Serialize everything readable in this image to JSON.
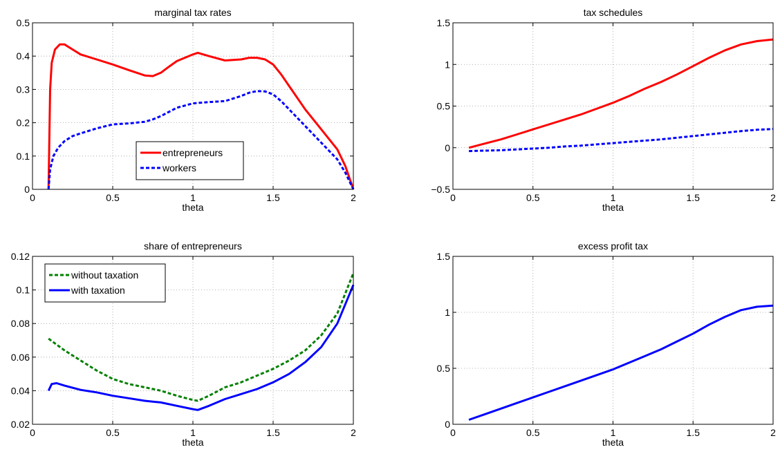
{
  "chart_data": [
    {
      "type": "line",
      "title": "marginal tax rates",
      "xlabel": "theta",
      "ylabel": "",
      "xlim": [
        0,
        2
      ],
      "ylim": [
        0,
        0.5
      ],
      "xticks": [
        "0",
        "0.5",
        "1",
        "1.5",
        "2"
      ],
      "yticks": [
        "0",
        "0.1",
        "0.2",
        "0.3",
        "0.4",
        "0.5"
      ],
      "grid": true,
      "legend": "bottom-center",
      "series": [
        {
          "name": "entrepreneurs",
          "color": "#ff0000",
          "dash": "solid",
          "x": [
            0.1,
            0.11,
            0.12,
            0.14,
            0.17,
            0.2,
            0.25,
            0.3,
            0.4,
            0.5,
            0.6,
            0.7,
            0.75,
            0.8,
            0.85,
            0.9,
            1.0,
            1.03,
            1.1,
            1.2,
            1.3,
            1.35,
            1.4,
            1.45,
            1.5,
            1.55,
            1.6,
            1.7,
            1.8,
            1.9,
            1.95,
            2.0
          ],
          "y": [
            0.0,
            0.3,
            0.38,
            0.42,
            0.435,
            0.435,
            0.42,
            0.405,
            0.39,
            0.375,
            0.358,
            0.342,
            0.34,
            0.35,
            0.368,
            0.385,
            0.405,
            0.41,
            0.4,
            0.387,
            0.39,
            0.395,
            0.395,
            0.39,
            0.375,
            0.345,
            0.31,
            0.24,
            0.18,
            0.12,
            0.07,
            0.0
          ]
        },
        {
          "name": "workers",
          "color": "#0000ff",
          "dash": "dashed",
          "x": [
            0.1,
            0.11,
            0.13,
            0.16,
            0.2,
            0.25,
            0.3,
            0.4,
            0.5,
            0.6,
            0.7,
            0.75,
            0.8,
            0.9,
            1.0,
            1.1,
            1.2,
            1.3,
            1.35,
            1.4,
            1.45,
            1.5,
            1.55,
            1.6,
            1.7,
            1.8,
            1.9,
            1.95,
            2.0
          ],
          "y": [
            0.0,
            0.06,
            0.1,
            0.125,
            0.145,
            0.16,
            0.168,
            0.183,
            0.195,
            0.198,
            0.203,
            0.21,
            0.22,
            0.245,
            0.258,
            0.262,
            0.265,
            0.28,
            0.29,
            0.295,
            0.294,
            0.285,
            0.265,
            0.24,
            0.19,
            0.14,
            0.09,
            0.05,
            0.0
          ]
        }
      ]
    },
    {
      "type": "line",
      "title": "tax schedules",
      "xlabel": "theta",
      "ylabel": "",
      "xlim": [
        0,
        2
      ],
      "ylim": [
        -0.5,
        1.5
      ],
      "xticks": [
        "0",
        "0.5",
        "1",
        "1.5",
        "2"
      ],
      "yticks": [
        "−0.5",
        "0",
        "0.5",
        "1",
        "1.5"
      ],
      "grid": true,
      "legend": "none",
      "series": [
        {
          "color": "#ff0000",
          "dash": "solid",
          "x": [
            0.1,
            0.2,
            0.3,
            0.4,
            0.5,
            0.6,
            0.7,
            0.8,
            0.9,
            1.0,
            1.1,
            1.2,
            1.3,
            1.4,
            1.5,
            1.6,
            1.7,
            1.8,
            1.9,
            2.0
          ],
          "y": [
            0.0,
            0.05,
            0.1,
            0.16,
            0.22,
            0.28,
            0.34,
            0.4,
            0.47,
            0.54,
            0.62,
            0.71,
            0.79,
            0.88,
            0.98,
            1.08,
            1.17,
            1.24,
            1.28,
            1.3
          ]
        },
        {
          "color": "#0000ff",
          "dash": "dashed",
          "x": [
            0.1,
            0.2,
            0.3,
            0.4,
            0.5,
            0.6,
            0.7,
            0.8,
            0.9,
            1.0,
            1.1,
            1.2,
            1.3,
            1.4,
            1.5,
            1.6,
            1.7,
            1.8,
            1.9,
            2.0
          ],
          "y": [
            -0.04,
            -0.035,
            -0.03,
            -0.02,
            -0.01,
            0.0,
            0.015,
            0.025,
            0.04,
            0.055,
            0.07,
            0.085,
            0.1,
            0.12,
            0.14,
            0.16,
            0.18,
            0.2,
            0.215,
            0.225
          ]
        }
      ]
    },
    {
      "type": "line",
      "title": "share of entrepreneurs",
      "xlabel": "theta",
      "ylabel": "",
      "xlim": [
        0,
        2
      ],
      "ylim": [
        0.02,
        0.12
      ],
      "xticks": [
        "0",
        "0.5",
        "1",
        "1.5",
        "2"
      ],
      "yticks": [
        "0.02",
        "0.04",
        "0.06",
        "0.08",
        "0.1",
        "0.12"
      ],
      "grid": true,
      "legend": "top-left",
      "series": [
        {
          "name": "without taxation",
          "color": "#008000",
          "dash": "dashed",
          "x": [
            0.1,
            0.2,
            0.3,
            0.4,
            0.5,
            0.6,
            0.7,
            0.8,
            0.9,
            1.0,
            1.03,
            1.1,
            1.2,
            1.3,
            1.4,
            1.5,
            1.6,
            1.7,
            1.8,
            1.9,
            2.0
          ],
          "y": [
            0.071,
            0.064,
            0.058,
            0.052,
            0.047,
            0.044,
            0.042,
            0.04,
            0.037,
            0.0345,
            0.034,
            0.037,
            0.042,
            0.045,
            0.049,
            0.053,
            0.058,
            0.064,
            0.073,
            0.086,
            0.11
          ]
        },
        {
          "name": "with taxation",
          "color": "#0000ff",
          "dash": "solid",
          "x": [
            0.1,
            0.12,
            0.15,
            0.2,
            0.3,
            0.4,
            0.5,
            0.6,
            0.7,
            0.75,
            0.8,
            0.9,
            1.0,
            1.03,
            1.1,
            1.2,
            1.3,
            1.4,
            1.5,
            1.6,
            1.7,
            1.8,
            1.9,
            2.0
          ],
          "y": [
            0.04,
            0.044,
            0.0445,
            0.043,
            0.0405,
            0.039,
            0.037,
            0.0355,
            0.034,
            0.0335,
            0.033,
            0.031,
            0.029,
            0.0285,
            0.031,
            0.035,
            0.038,
            0.041,
            0.045,
            0.05,
            0.057,
            0.066,
            0.08,
            0.103
          ]
        }
      ]
    },
    {
      "type": "line",
      "title": "excess profit tax",
      "xlabel": "theta",
      "ylabel": "",
      "xlim": [
        0,
        2
      ],
      "ylim": [
        0,
        1.5
      ],
      "xticks": [
        "0",
        "0.5",
        "1",
        "1.5",
        "2"
      ],
      "yticks": [
        "0",
        "0.5",
        "1",
        "1.5"
      ],
      "grid": true,
      "legend": "none",
      "series": [
        {
          "color": "#0000ff",
          "dash": "solid",
          "x": [
            0.1,
            0.2,
            0.3,
            0.4,
            0.5,
            0.6,
            0.7,
            0.8,
            0.9,
            1.0,
            1.1,
            1.2,
            1.3,
            1.4,
            1.5,
            1.6,
            1.7,
            1.8,
            1.9,
            2.0
          ],
          "y": [
            0.04,
            0.09,
            0.14,
            0.19,
            0.24,
            0.29,
            0.34,
            0.39,
            0.44,
            0.49,
            0.55,
            0.61,
            0.67,
            0.74,
            0.81,
            0.89,
            0.96,
            1.02,
            1.05,
            1.06
          ]
        }
      ]
    }
  ]
}
